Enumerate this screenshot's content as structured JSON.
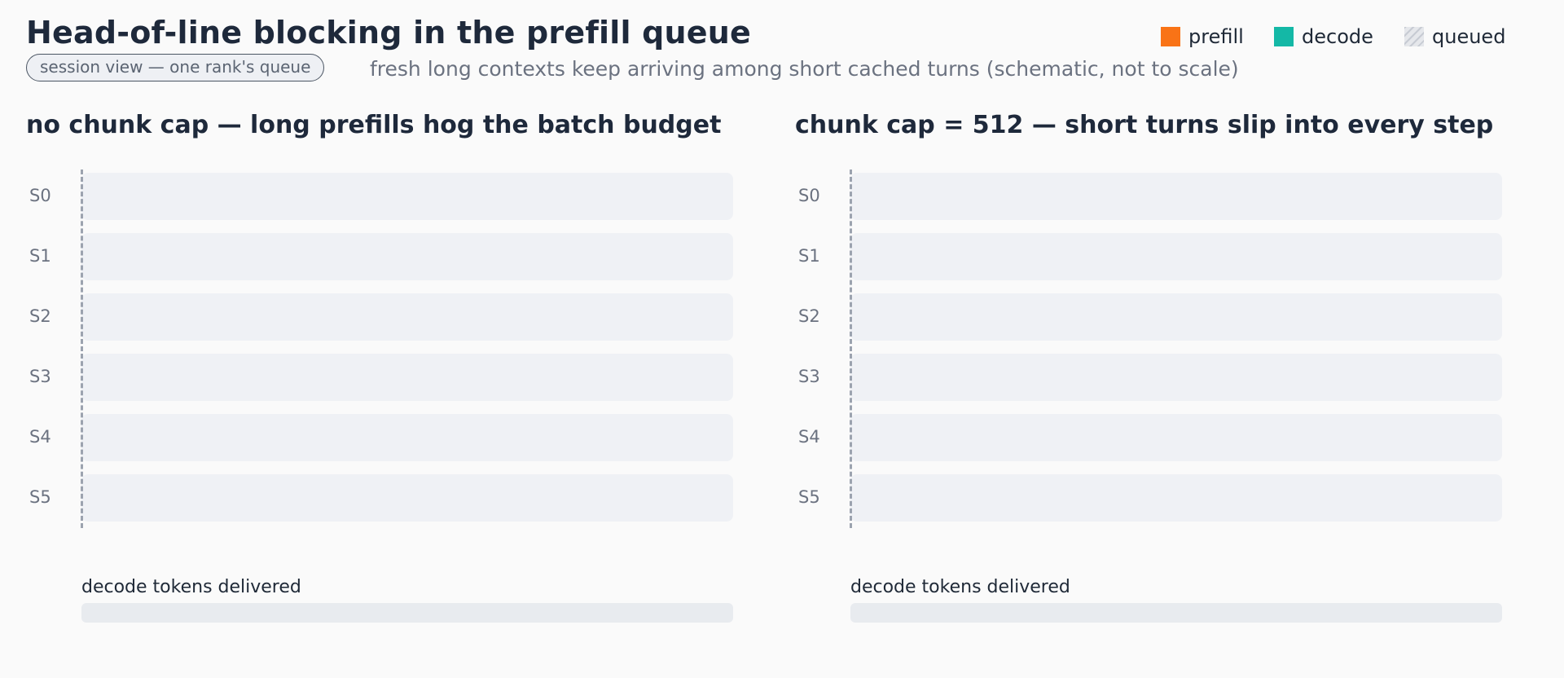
{
  "header": {
    "title": "Head-of-line blocking in the prefill queue",
    "badge": "session view — one rank's queue",
    "subtitle": "fresh long contexts keep arriving among short cached turns (schematic, not to scale)"
  },
  "legend": {
    "items": [
      {
        "label": "prefill",
        "color": "#f97316",
        "icon": "solid-swatch"
      },
      {
        "label": "decode",
        "color": "#14b8a6",
        "icon": "solid-swatch"
      },
      {
        "label": "queued",
        "color": "#e5e7eb",
        "icon": "hatched-swatch"
      }
    ]
  },
  "panels": [
    {
      "title": "no chunk cap — long prefills hog the batch budget",
      "rows": [
        "S0",
        "S1",
        "S2",
        "S3",
        "S4",
        "S5"
      ],
      "tokens_label": "decode tokens delivered"
    },
    {
      "title": "chunk cap = 512 — short turns slip into every step",
      "rows": [
        "S0",
        "S1",
        "S2",
        "S3",
        "S4",
        "S5"
      ],
      "tokens_label": "decode tokens delivered"
    }
  ]
}
